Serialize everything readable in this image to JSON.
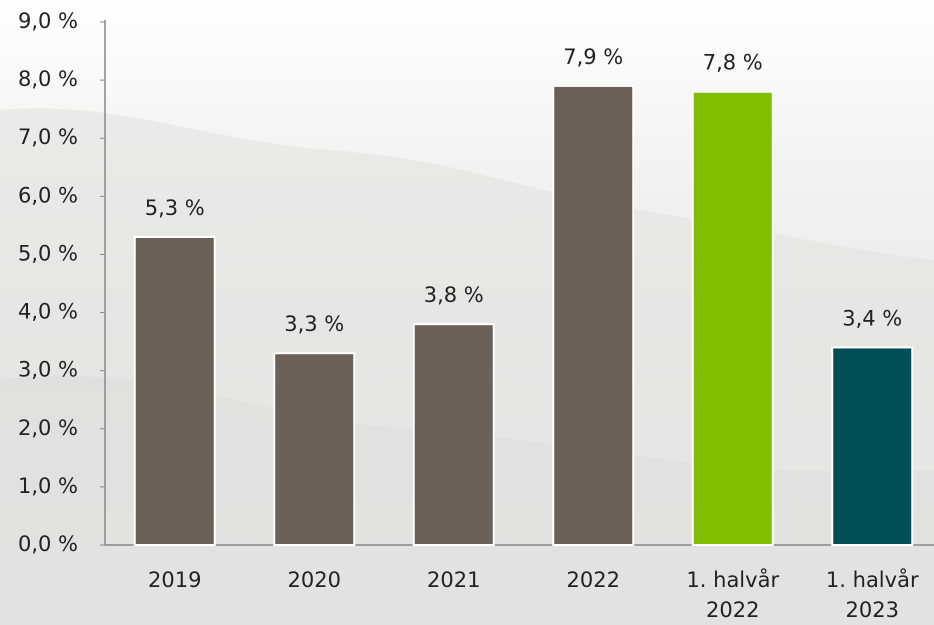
{
  "chart_data": {
    "type": "bar",
    "categories": [
      "2019",
      "2020",
      "2021",
      "2022",
      "1. halvår 2022",
      "1. halvår 2023"
    ],
    "values": [
      5.3,
      3.3,
      3.8,
      7.9,
      7.8,
      3.4
    ],
    "value_labels": [
      "5,3 %",
      "3,3 %",
      "3,8 %",
      "7,9 %",
      "7,8 %",
      "3,4 %"
    ],
    "colors": [
      "#6b6158",
      "#6b6158",
      "#6b6158",
      "#6b6158",
      "#80bc00",
      "#004f59"
    ],
    "ylim": [
      0,
      9
    ],
    "yticks": [
      {
        "value": 0,
        "label": "0,0 %"
      },
      {
        "value": 1,
        "label": "1,0 %"
      },
      {
        "value": 2,
        "label": "2,0 %"
      },
      {
        "value": 3,
        "label": "3,0 %"
      },
      {
        "value": 4,
        "label": "4,0 %"
      },
      {
        "value": 5,
        "label": "5,0 %"
      },
      {
        "value": 6,
        "label": "6,0 %"
      },
      {
        "value": 7,
        "label": "7,0 %"
      },
      {
        "value": 8,
        "label": "8,0 %"
      },
      {
        "value": 9,
        "label": "9,0 %"
      }
    ],
    "grid": false
  }
}
